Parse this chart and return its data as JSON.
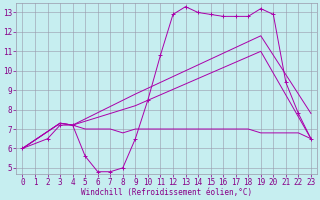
{
  "xlabel": "Windchill (Refroidissement éolien,°C)",
  "background_color": "#c6eef0",
  "grid_color": "#9999aa",
  "line_color": "#aa00aa",
  "xlim": [
    -0.5,
    23.5
  ],
  "ylim": [
    4.7,
    13.5
  ],
  "xticks": [
    0,
    1,
    2,
    3,
    4,
    5,
    6,
    7,
    8,
    9,
    10,
    11,
    12,
    13,
    14,
    15,
    16,
    17,
    18,
    19,
    20,
    21,
    22,
    23
  ],
  "yticks": [
    5,
    6,
    7,
    8,
    9,
    10,
    11,
    12,
    13
  ],
  "line1_x": [
    0,
    2,
    3,
    4,
    5,
    6,
    7,
    8,
    9,
    10,
    11,
    12,
    13,
    14,
    15,
    16,
    17,
    18,
    19,
    20,
    21,
    22,
    23
  ],
  "line1_y": [
    6.0,
    6.5,
    7.2,
    7.2,
    5.6,
    4.8,
    4.8,
    5.0,
    6.5,
    8.5,
    10.8,
    12.9,
    13.3,
    13.0,
    12.9,
    12.8,
    12.8,
    12.8,
    13.2,
    12.9,
    9.4,
    7.8,
    6.5
  ],
  "line2_x": [
    0,
    3,
    4,
    9,
    19,
    23
  ],
  "line2_y": [
    6.0,
    7.3,
    7.2,
    8.8,
    11.8,
    7.8
  ],
  "line3_x": [
    0,
    3,
    4,
    9,
    19,
    23
  ],
  "line3_y": [
    6.0,
    7.3,
    7.2,
    8.2,
    11.0,
    6.5
  ],
  "line4_x": [
    0,
    3,
    4,
    5,
    6,
    7,
    8,
    9,
    10,
    11,
    12,
    13,
    14,
    15,
    16,
    17,
    18,
    19,
    20,
    21,
    22,
    23
  ],
  "line4_y": [
    6.0,
    7.3,
    7.2,
    7.0,
    7.0,
    7.0,
    6.8,
    7.0,
    7.0,
    7.0,
    7.0,
    7.0,
    7.0,
    7.0,
    7.0,
    7.0,
    7.0,
    6.8,
    6.8,
    6.8,
    6.8,
    6.5
  ],
  "tick_fontsize": 5.5,
  "xlabel_fontsize": 5.5,
  "tick_color": "#880088",
  "label_color": "#880088"
}
